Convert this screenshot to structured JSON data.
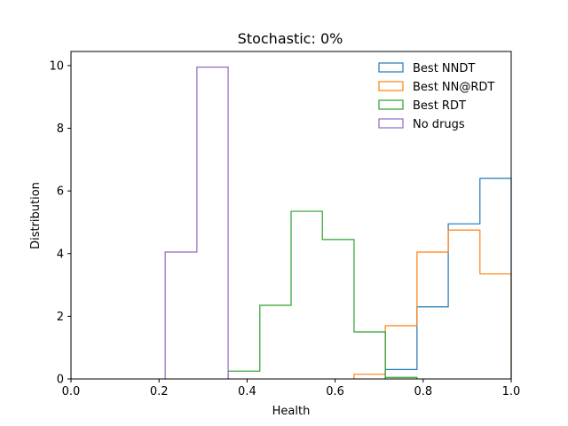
{
  "chart_data": {
    "type": "histogram",
    "title": "Stochastic: 0%",
    "xlabel": "Health",
    "ylabel": "Distribution",
    "xlim": [
      0.0,
      1.0
    ],
    "ylim": [
      0,
      10.45
    ],
    "xticks": [
      "0.0",
      "0.2",
      "0.4",
      "0.6",
      "0.8",
      "1.0"
    ],
    "yticks": [
      "0",
      "2",
      "4",
      "6",
      "8",
      "10"
    ],
    "legend_position": "top-right",
    "series": [
      {
        "name": "Best NNDT",
        "color": "#1f77b4",
        "edges": [
          0.714,
          0.786,
          0.857,
          0.929,
          1.0
        ],
        "values": [
          0.3,
          2.3,
          4.95,
          6.4
        ]
      },
      {
        "name": "Best NN@RDT",
        "color": "#ff7f0e",
        "edges": [
          0.643,
          0.714,
          0.786,
          0.857,
          0.929,
          1.0
        ],
        "values": [
          0.15,
          1.7,
          4.05,
          4.75,
          3.35
        ]
      },
      {
        "name": "Best RDT",
        "color": "#2ca02c",
        "edges": [
          0.357,
          0.429,
          0.5,
          0.571,
          0.643,
          0.714,
          0.786
        ],
        "values": [
          0.25,
          2.35,
          5.35,
          4.45,
          1.5,
          0.05
        ]
      },
      {
        "name": "No drugs",
        "color": "#9467bd",
        "edges": [
          0.214,
          0.286,
          0.357
        ],
        "values": [
          4.05,
          9.95
        ]
      }
    ]
  }
}
